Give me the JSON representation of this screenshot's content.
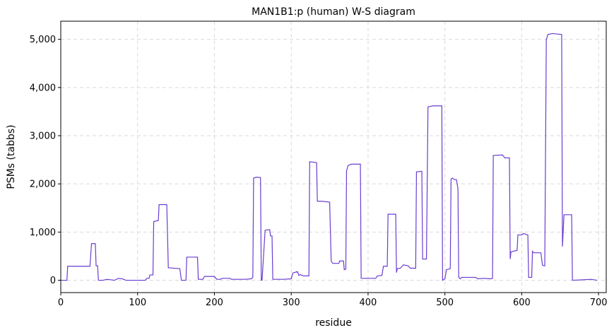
{
  "chart_data": {
    "type": "line",
    "title": "MAN1B1:p (human) W-S diagram",
    "x_label": "residue",
    "y_label": "PSMs (tabbs)",
    "x": [
      0,
      8,
      9,
      38,
      40,
      45,
      46,
      48,
      49,
      55,
      60,
      70,
      75,
      80,
      85,
      110,
      112,
      115,
      116,
      120,
      121,
      127,
      128,
      138,
      140,
      155,
      157,
      163,
      164,
      178,
      179,
      185,
      187,
      200,
      203,
      208,
      210,
      220,
      222,
      240,
      248,
      250,
      251,
      255,
      260,
      261,
      262,
      266,
      272,
      273,
      275,
      276,
      290,
      300,
      302,
      308,
      310,
      312,
      314,
      316,
      323,
      324,
      333,
      334,
      340,
      350,
      352,
      354,
      362,
      363,
      368,
      369,
      371,
      372,
      374,
      378,
      390,
      391,
      410,
      412,
      418,
      420,
      425,
      426,
      436,
      437,
      438,
      442,
      446,
      452,
      455,
      462,
      463,
      470,
      471,
      476,
      478,
      485,
      496,
      497,
      500,
      502,
      507,
      508,
      510,
      512,
      515,
      517,
      518,
      520,
      522,
      540,
      543,
      550,
      560,
      562,
      563,
      575,
      578,
      584,
      585,
      586,
      594,
      595,
      600,
      602,
      608,
      609,
      613,
      614,
      616,
      625,
      627,
      630,
      632,
      634,
      640,
      652,
      653,
      655,
      665,
      666,
      680,
      690,
      698
    ],
    "series": [
      {
        "name": "PSMs",
        "color": "#6a3dd0",
        "values": [
          0,
          0,
          290,
          290,
          760,
          760,
          300,
          300,
          0,
          0,
          20,
          0,
          40,
          30,
          0,
          0,
          40,
          40,
          110,
          110,
          1220,
          1240,
          1570,
          1570,
          260,
          240,
          0,
          0,
          480,
          480,
          20,
          20,
          80,
          80,
          20,
          20,
          40,
          40,
          20,
          20,
          30,
          60,
          2120,
          2140,
          2130,
          0,
          0,
          1040,
          1050,
          920,
          920,
          20,
          20,
          30,
          150,
          180,
          100,
          120,
          100,
          90,
          90,
          2460,
          2440,
          1640,
          1640,
          1620,
          400,
          350,
          350,
          400,
          400,
          220,
          230,
          2270,
          2380,
          2410,
          2410,
          40,
          40,
          90,
          100,
          290,
          290,
          1370,
          1370,
          160,
          240,
          250,
          320,
          300,
          250,
          250,
          2250,
          2260,
          440,
          440,
          3600,
          3620,
          3620,
          0,
          30,
          220,
          240,
          2100,
          2120,
          2090,
          2090,
          1900,
          60,
          30,
          60,
          60,
          30,
          40,
          30,
          40,
          2590,
          2600,
          2540,
          2540,
          440,
          590,
          620,
          940,
          940,
          970,
          940,
          60,
          60,
          600,
          570,
          570,
          310,
          300,
          4990,
          5100,
          5120,
          5100,
          700,
          1360,
          1360,
          0,
          10,
          20,
          0
        ]
      }
    ],
    "xlim": [
      0,
      710
    ],
    "ylim": [
      -256,
      5376
    ],
    "xticks": [
      0,
      100,
      200,
      300,
      400,
      500,
      600,
      700
    ],
    "yticks": [
      0,
      {
        "value": 1000,
        "label": "1,000"
      },
      {
        "value": 2000,
        "label": "2,000"
      },
      {
        "value": 3000,
        "label": "3,000"
      },
      {
        "value": 4000,
        "label": "4,000"
      },
      {
        "value": 5000,
        "label": "5,000"
      }
    ],
    "grid": true
  }
}
